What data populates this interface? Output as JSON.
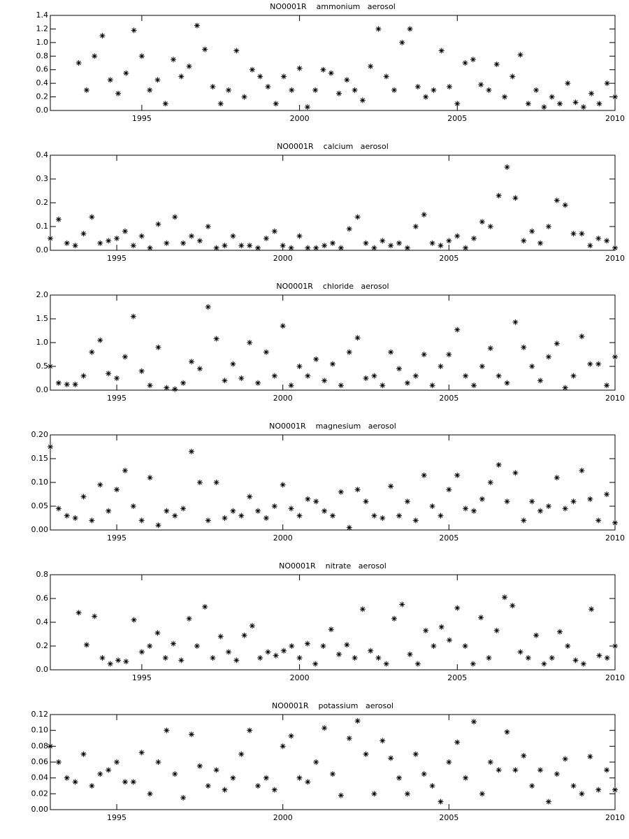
{
  "chart_data": [
    {
      "type": "scatter",
      "title": "NO0001R    ammonium   aerosol",
      "x": [
        1993,
        1993.25,
        1993.5,
        1993.75,
        1994,
        1994.25,
        1994.5,
        1994.75,
        1995,
        1995.25,
        1995.5,
        1995.75,
        1996,
        1996.25,
        1996.5,
        1996.75,
        1997,
        1997.25,
        1997.5,
        1997.75,
        1998,
        1998.25,
        1998.5,
        1998.75,
        1999,
        1999.25,
        1999.5,
        1999.75,
        2000,
        2000.25,
        2000.5,
        2000.75,
        2001,
        2001.25,
        2001.5,
        2001.75,
        2002,
        2002.25,
        2002.5,
        2002.75,
        2003,
        2003.25,
        2003.5,
        2003.75,
        2004,
        2004.25,
        2004.5,
        2004.75,
        2005,
        2005.25,
        2005.5,
        2005.75,
        2006,
        2006.25,
        2006.5,
        2006.75,
        2007,
        2007.25,
        2007.5,
        2007.75,
        2008,
        2008.25,
        2008.5,
        2008.75,
        2009,
        2009.25,
        2009.5,
        2009.75,
        2010
      ],
      "values": [
        0.7,
        0.3,
        0.8,
        1.1,
        0.45,
        0.25,
        0.55,
        1.18,
        0.8,
        0.3,
        0.45,
        0.1,
        0.75,
        0.5,
        0.65,
        1.25,
        0.9,
        0.35,
        0.1,
        0.3,
        0.88,
        0.2,
        0.6,
        0.5,
        0.35,
        0.1,
        0.5,
        0.3,
        0.62,
        0.05,
        0.3,
        0.6,
        0.55,
        0.25,
        0.45,
        0.3,
        0.15,
        0.65,
        1.2,
        0.5,
        0.3,
        1.0,
        1.2,
        0.35,
        0.2,
        0.3,
        0.88,
        0.35,
        0.1,
        0.7,
        0.75,
        0.38,
        0.3,
        0.68,
        0.2,
        0.5,
        0.82,
        0.1,
        0.3,
        0.05,
        0.2,
        0.1,
        0.4,
        0.12,
        0.05,
        0.25,
        0.1,
        0.4,
        0.2
      ],
      "xlim": [
        1992.1,
        2010
      ],
      "xticks": [
        1995,
        2000,
        2005,
        2010
      ],
      "ylim": [
        0,
        1.4
      ],
      "yticks": [
        {
          "value": 0,
          "label": "0.0"
        },
        0.2,
        0.4,
        0.6,
        0.8,
        {
          "value": 1,
          "label": "1.0"
        },
        1.2,
        1.4
      ]
    },
    {
      "type": "scatter",
      "title": "NO0001R    calcium   aerosol",
      "x": [
        1993,
        1993.25,
        1993.5,
        1993.75,
        1994,
        1994.25,
        1994.5,
        1994.75,
        1995,
        1995.25,
        1995.5,
        1995.75,
        1996,
        1996.25,
        1996.5,
        1996.75,
        1997,
        1997.25,
        1997.5,
        1997.75,
        1998,
        1998.25,
        1998.5,
        1998.75,
        1999,
        1999.25,
        1999.5,
        1999.75,
        2000,
        2000.25,
        2000.5,
        2000.75,
        2001,
        2001.25,
        2001.5,
        2001.75,
        2002,
        2002.25,
        2002.5,
        2002.75,
        2003,
        2003.25,
        2003.5,
        2003.75,
        2004,
        2004.25,
        2004.5,
        2004.75,
        2005,
        2005.25,
        2005.5,
        2005.75,
        2006,
        2006.25,
        2006.5,
        2006.75,
        2007,
        2007.25,
        2007.5,
        2007.75,
        2008,
        2008.25,
        2008.5,
        2008.75,
        2009,
        2009.25,
        2009.5,
        2009.75,
        2010
      ],
      "values": [
        0.05,
        0.13,
        0.03,
        0.02,
        0.07,
        0.14,
        0.03,
        0.04,
        0.05,
        0.08,
        0.02,
        0.06,
        0.01,
        0.11,
        0.03,
        0.14,
        0.03,
        0.06,
        0.04,
        0.1,
        0.01,
        0.02,
        0.06,
        0.02,
        0.02,
        0.01,
        0.05,
        0.08,
        0.02,
        0.01,
        0.06,
        0.01,
        0.01,
        0.02,
        0.03,
        0.01,
        0.09,
        0.14,
        0.03,
        0.01,
        0.04,
        0.02,
        0.03,
        0.01,
        0.1,
        0.15,
        0.03,
        0.02,
        0.04,
        0.06,
        0.01,
        0.05,
        0.12,
        0.1,
        0.23,
        0.35,
        0.22,
        0.04,
        0.08,
        0.03,
        0.1,
        0.21,
        0.19,
        0.07,
        0.07,
        0.02,
        0.05,
        0.04,
        0.01
      ],
      "xlim": [
        1993,
        2010
      ],
      "xticks": [
        1995,
        2000,
        2005,
        2010
      ],
      "ylim": [
        0,
        0.4
      ],
      "yticks": [
        {
          "value": 0,
          "label": "0.0"
        },
        0.1,
        0.2,
        0.3,
        0.4
      ]
    },
    {
      "type": "scatter",
      "title": "NO0001R    chloride   aerosol",
      "x": [
        1993,
        1993.25,
        1993.5,
        1993.75,
        1994,
        1994.25,
        1994.5,
        1994.75,
        1995,
        1995.25,
        1995.5,
        1995.75,
        1996,
        1996.25,
        1996.5,
        1996.75,
        1997,
        1997.25,
        1997.5,
        1997.75,
        1998,
        1998.25,
        1998.5,
        1998.75,
        1999,
        1999.25,
        1999.5,
        1999.75,
        2000,
        2000.25,
        2000.5,
        2000.75,
        2001,
        2001.25,
        2001.5,
        2001.75,
        2002,
        2002.25,
        2002.5,
        2002.75,
        2003,
        2003.25,
        2003.5,
        2003.75,
        2004,
        2004.25,
        2004.5,
        2004.75,
        2005,
        2005.25,
        2005.5,
        2005.75,
        2006,
        2006.25,
        2006.5,
        2006.75,
        2007,
        2007.25,
        2007.5,
        2007.75,
        2008,
        2008.25,
        2008.5,
        2008.75,
        2009,
        2009.25,
        2009.5,
        2009.75,
        2010
      ],
      "values": [
        0.5,
        0.15,
        0.12,
        0.12,
        0.3,
        0.8,
        1.05,
        0.35,
        0.25,
        0.7,
        1.55,
        0.4,
        0.1,
        0.9,
        0.05,
        0.02,
        0.15,
        0.6,
        0.45,
        1.75,
        1.08,
        0.2,
        0.55,
        0.25,
        1.0,
        0.15,
        0.8,
        0.3,
        1.35,
        0.1,
        0.5,
        0.3,
        0.65,
        0.2,
        0.55,
        0.1,
        0.8,
        1.1,
        0.25,
        0.3,
        0.1,
        0.8,
        0.45,
        0.15,
        0.3,
        0.75,
        0.1,
        0.5,
        0.75,
        1.27,
        0.3,
        0.1,
        0.5,
        0.88,
        0.3,
        0.15,
        1.43,
        0.9,
        0.5,
        0.2,
        0.7,
        0.98,
        0.05,
        0.3,
        1.13,
        0.55,
        0.55,
        0.1,
        0.7
      ],
      "xlim": [
        1993,
        2010
      ],
      "xticks": [
        1995,
        2000,
        2005,
        2010
      ],
      "ylim": [
        0,
        2
      ],
      "yticks": [
        {
          "value": 0,
          "label": "0.0"
        },
        0.5,
        {
          "value": 1,
          "label": "1.0"
        },
        1.5,
        {
          "value": 2,
          "label": "2.0"
        }
      ]
    },
    {
      "type": "scatter",
      "title": "NO0001R    magnesium   aerosol",
      "x": [
        1993,
        1993.25,
        1993.5,
        1993.75,
        1994,
        1994.25,
        1994.5,
        1994.75,
        1995,
        1995.25,
        1995.5,
        1995.75,
        1996,
        1996.25,
        1996.5,
        1996.75,
        1997,
        1997.25,
        1997.5,
        1997.75,
        1998,
        1998.25,
        1998.5,
        1998.75,
        1999,
        1999.25,
        1999.5,
        1999.75,
        2000,
        2000.25,
        2000.5,
        2000.75,
        2001,
        2001.25,
        2001.5,
        2001.75,
        2002,
        2002.25,
        2002.5,
        2002.75,
        2003,
        2003.25,
        2003.5,
        2003.75,
        2004,
        2004.25,
        2004.5,
        2004.75,
        2005,
        2005.25,
        2005.5,
        2005.75,
        2006,
        2006.25,
        2006.5,
        2006.75,
        2007,
        2007.25,
        2007.5,
        2007.75,
        2008,
        2008.25,
        2008.5,
        2008.75,
        2009,
        2009.25,
        2009.5,
        2009.75,
        2010
      ],
      "values": [
        0.175,
        0.045,
        0.03,
        0.025,
        0.07,
        0.02,
        0.095,
        0.04,
        0.085,
        0.125,
        0.05,
        0.02,
        0.11,
        0.01,
        0.04,
        0.03,
        0.045,
        0.165,
        0.1,
        0.02,
        0.1,
        0.025,
        0.04,
        0.03,
        0.07,
        0.04,
        0.025,
        0.05,
        0.095,
        0.045,
        0.03,
        0.065,
        0.06,
        0.04,
        0.03,
        0.08,
        0.005,
        0.085,
        0.06,
        0.03,
        0.025,
        0.092,
        0.03,
        0.06,
        0.02,
        0.115,
        0.05,
        0.03,
        0.085,
        0.115,
        0.045,
        0.04,
        0.065,
        0.1,
        0.137,
        0.06,
        0.12,
        0.02,
        0.06,
        0.04,
        0.05,
        0.11,
        0.045,
        0.06,
        0.125,
        0.065,
        0.02,
        0.075,
        0.015
      ],
      "xlim": [
        1993,
        2010
      ],
      "xticks": [
        1995,
        2000,
        2005,
        2010
      ],
      "ylim": [
        0,
        0.2
      ],
      "yticks": [
        {
          "value": 0,
          "label": "0.00"
        },
        0.05,
        {
          "value": 0.1,
          "label": "0.10"
        },
        0.15,
        {
          "value": 0.2,
          "label": "0.20"
        }
      ]
    },
    {
      "type": "scatter",
      "title": "NO0001R    nitrate   aerosol",
      "x": [
        1993,
        1993.25,
        1993.5,
        1993.75,
        1994,
        1994.25,
        1994.5,
        1994.75,
        1995,
        1995.25,
        1995.5,
        1995.75,
        1996,
        1996.25,
        1996.5,
        1996.75,
        1997,
        1997.25,
        1997.5,
        1997.75,
        1998,
        1998.25,
        1998.5,
        1998.75,
        1999,
        1999.25,
        1999.5,
        1999.75,
        2000,
        2000.25,
        2000.5,
        2000.75,
        2001,
        2001.25,
        2001.5,
        2001.75,
        2002,
        2002.25,
        2002.5,
        2002.75,
        2003,
        2003.25,
        2003.5,
        2003.75,
        2004,
        2004.25,
        2004.5,
        2004.75,
        2005,
        2005.25,
        2005.5,
        2005.75,
        2006,
        2006.25,
        2006.5,
        2006.75,
        2007,
        2007.25,
        2007.5,
        2007.75,
        2008,
        2008.25,
        2008.5,
        2008.75,
        2009,
        2009.25,
        2009.5,
        2009.75,
        2010
      ],
      "values": [
        0.48,
        0.21,
        0.45,
        0.1,
        0.05,
        0.08,
        0.07,
        0.42,
        0.15,
        0.2,
        0.31,
        0.1,
        0.22,
        0.08,
        0.43,
        0.2,
        0.53,
        0.1,
        0.28,
        0.15,
        0.08,
        0.29,
        0.37,
        0.1,
        0.15,
        0.12,
        0.16,
        0.2,
        0.1,
        0.22,
        0.05,
        0.2,
        0.34,
        0.13,
        0.21,
        0.1,
        0.51,
        0.16,
        0.1,
        0.05,
        0.43,
        0.55,
        0.13,
        0.05,
        0.33,
        0.2,
        0.36,
        0.25,
        0.52,
        0.2,
        0.05,
        0.44,
        0.1,
        0.33,
        0.61,
        0.54,
        0.15,
        0.1,
        0.29,
        0.05,
        0.1,
        0.32,
        0.2,
        0.08,
        0.05,
        0.51,
        0.12,
        0.1,
        0.2
      ],
      "xlim": [
        1992.1,
        2010
      ],
      "xticks": [
        1995,
        2000,
        2005,
        2010
      ],
      "ylim": [
        0,
        0.8
      ],
      "yticks": [
        {
          "value": 0,
          "label": "0.0"
        },
        0.2,
        0.4,
        0.6,
        0.8
      ]
    },
    {
      "type": "scatter",
      "title": "NO0001R    potassium   aerosol",
      "x": [
        1993,
        1993.25,
        1993.5,
        1993.75,
        1994,
        1994.25,
        1994.5,
        1994.75,
        1995,
        1995.25,
        1995.5,
        1995.75,
        1996,
        1996.25,
        1996.5,
        1996.75,
        1997,
        1997.25,
        1997.5,
        1997.75,
        1998,
        1998.25,
        1998.5,
        1998.75,
        1999,
        1999.25,
        1999.5,
        1999.75,
        2000,
        2000.25,
        2000.5,
        2000.75,
        2001,
        2001.25,
        2001.5,
        2001.75,
        2002,
        2002.25,
        2002.5,
        2002.75,
        2003,
        2003.25,
        2003.5,
        2003.75,
        2004,
        2004.25,
        2004.5,
        2004.75,
        2005,
        2005.25,
        2005.5,
        2005.75,
        2006,
        2006.25,
        2006.5,
        2006.75,
        2007,
        2007.25,
        2007.5,
        2007.75,
        2008,
        2008.25,
        2008.5,
        2008.75,
        2009,
        2009.25,
        2009.5,
        2009.75,
        2010
      ],
      "values": [
        0.08,
        0.06,
        0.04,
        0.035,
        0.07,
        0.03,
        0.045,
        0.05,
        0.06,
        0.035,
        0.035,
        0.072,
        0.02,
        0.06,
        0.1,
        0.045,
        0.015,
        0.095,
        0.055,
        0.03,
        0.05,
        0.025,
        0.04,
        0.07,
        0.1,
        0.03,
        0.04,
        0.025,
        0.08,
        0.093,
        0.04,
        0.035,
        0.06,
        0.103,
        0.045,
        0.018,
        0.09,
        0.112,
        0.07,
        0.02,
        0.087,
        0.065,
        0.04,
        0.02,
        0.07,
        0.045,
        0.03,
        0.01,
        0.06,
        0.085,
        0.04,
        0.111,
        0.02,
        0.06,
        0.05,
        0.098,
        0.05,
        0.068,
        0.03,
        0.05,
        0.01,
        0.045,
        0.064,
        0.03,
        0.02,
        0.067,
        0.025,
        0.05,
        0.025
      ],
      "xlim": [
        1993,
        2010
      ],
      "xticks": [
        1995,
        2000,
        2005,
        2010
      ],
      "ylim": [
        0,
        0.12
      ],
      "yticks": [
        {
          "value": 0,
          "label": "0.00"
        },
        0.02,
        0.04,
        0.06,
        0.08,
        {
          "value": 0.1,
          "label": "0.10"
        },
        0.12
      ]
    }
  ]
}
